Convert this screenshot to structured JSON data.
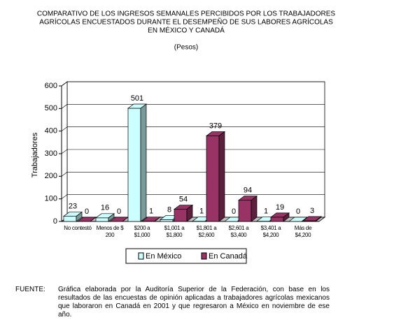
{
  "chart_data": {
    "type": "bar3d",
    "title": [
      "COMPARATIVO DE LOS INGRESOS SEMANALES PERCIBIDOS POR LOS TRABAJADORES",
      "AGRÍCOLAS ENCUESTADOS DURANTE EL DESEMPEÑO DE SUS LABORES AGRÍCOLAS",
      "EN MÉXICO Y CANADÁ"
    ],
    "subtitle": "(Pesos)",
    "y_label": "Trabajadores",
    "categories": [
      "No contestó",
      "Menos de $ 200",
      "$200 a $1,000",
      "$1,001 a $1,800",
      "$1,801 a $2,600",
      "$2,601 a $3,400",
      "$3,401 a $4,200",
      "Más de $4,200"
    ],
    "series": [
      {
        "name": "En México",
        "color": "#ccffff",
        "values": [
          23,
          16,
          501,
          8,
          1,
          0,
          1,
          0
        ]
      },
      {
        "name": "En Canadá",
        "color": "#993366",
        "values": [
          0,
          0,
          1,
          54,
          379,
          94,
          19,
          3
        ]
      }
    ],
    "ylim": [
      0,
      600
    ],
    "yticks": [
      0,
      100,
      200,
      300,
      400,
      500,
      600
    ],
    "grid": true,
    "source_label": "FUENTE:",
    "source_text": "Gráfica elaborada por la Auditoría Superior de la Federación, con base en los resultados de las encuestas de opinión aplicadas a trabajadores agrícolas mexicanos que laboraron en Canadá en 2001 y que regresaron a México en noviembre de ese año."
  }
}
